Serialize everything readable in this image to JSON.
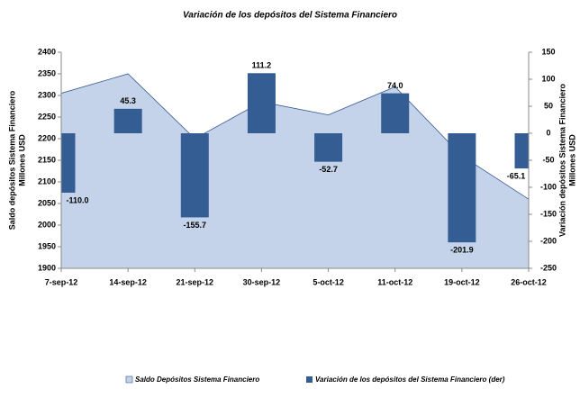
{
  "chart_data": {
    "type": "combo",
    "title": "Variación de los depósitos  del Sistema Financiero",
    "y_label": [
      "Saldo depósitos Sistema Financiero",
      "Millones USD"
    ],
    "y2_label": [
      "Variación depósitos Sistema Financiero",
      "Millones USD"
    ],
    "categories": [
      "7-sep-12",
      "14-sep-12",
      "21-sep-12",
      "30-sep-12",
      "5-oct-12",
      "11-oct-12",
      "19-oct-12",
      "26-oct-12"
    ],
    "series": [
      {
        "name": "Saldo Depósitos Sistema Financiero",
        "type": "area",
        "color": "#c5d3ea",
        "line_color": "#35578f",
        "values": [
          2305,
          2350,
          2200,
          2285,
          2255,
          2320,
          2160,
          2060
        ]
      },
      {
        "name": "Variación de los depósitos del Sistema Financiero (der)",
        "type": "bar",
        "axis": "y2",
        "color": "#335d93",
        "values": [
          -110.0,
          45.3,
          -155.7,
          111.2,
          -52.7,
          74.0,
          -201.9,
          -65.1
        ],
        "value_labels": [
          "-110.0",
          "45.3",
          "-155.7",
          "111.2",
          "-52.7",
          "74.0",
          "-201.9",
          "-65.1"
        ]
      }
    ],
    "ylim": [
      1900,
      2400
    ],
    "yticks": [
      1900,
      1950,
      2000,
      2050,
      2100,
      2150,
      2200,
      2250,
      2300,
      2350,
      2400
    ],
    "y2lim": [
      -250,
      150
    ],
    "y2ticks": [
      -250,
      -200,
      -150,
      -100,
      -50,
      0,
      50,
      100,
      150
    ],
    "legend": "bottom"
  }
}
